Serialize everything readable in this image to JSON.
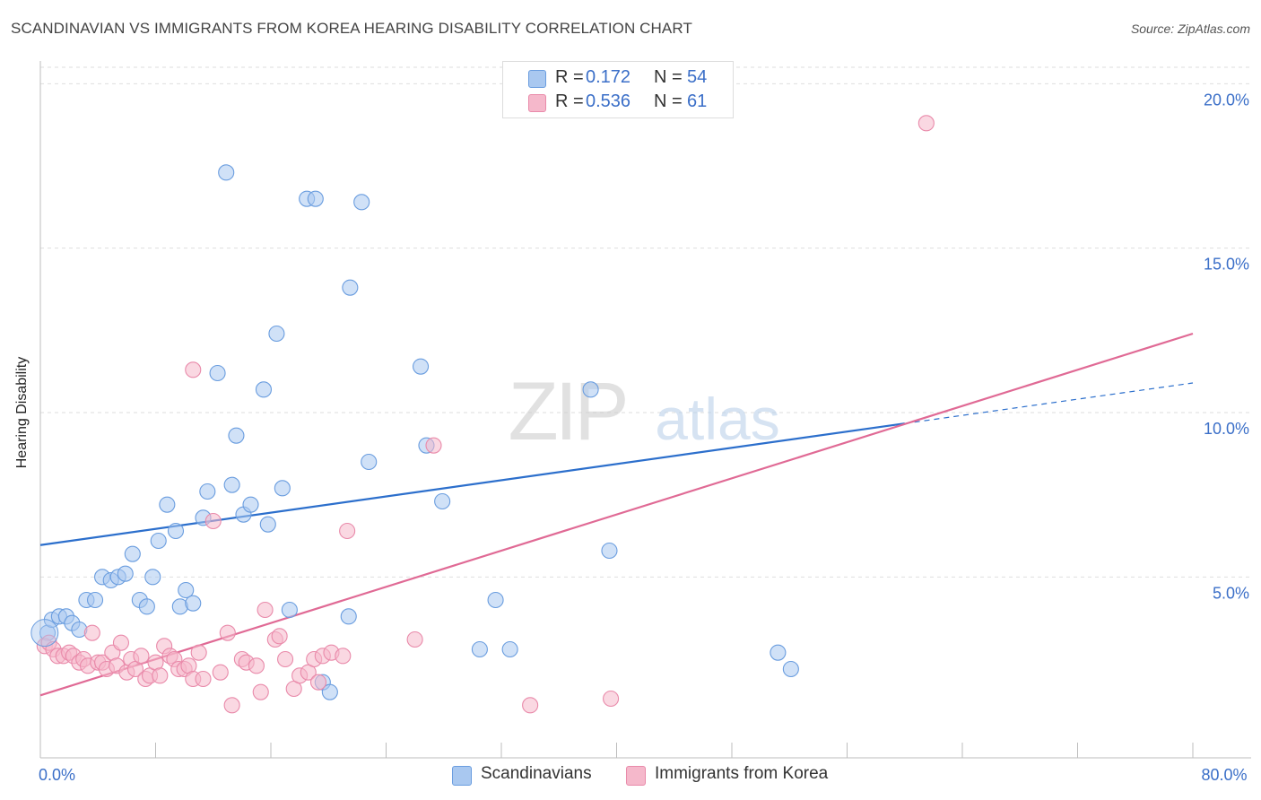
{
  "header": {
    "title": "SCANDINAVIAN VS IMMIGRANTS FROM KOREA HEARING DISABILITY CORRELATION CHART",
    "source": "Source: ZipAtlas.com"
  },
  "watermark": {
    "zip": "ZIP",
    "atlas": "atlas"
  },
  "stats": [
    {
      "r_label": "R =",
      "r_value": "0.172",
      "n_label": "N =",
      "n_value": "54",
      "color": "#a9c8f0"
    },
    {
      "r_label": "R =",
      "r_value": "0.536",
      "n_label": "N =",
      "n_value": "61",
      "color": "#f5b8cb"
    }
  ],
  "legend": [
    {
      "label": "Scandinavians",
      "color": "#a9c8f0"
    },
    {
      "label": "Immigrants from Korea",
      "color": "#f5b8cb"
    }
  ],
  "chart_data": {
    "type": "scatter",
    "ylabel": "Hearing Disability",
    "xlim": [
      0,
      80
    ],
    "ylim": [
      -0.5,
      20.5
    ],
    "x_tick_labels": [
      {
        "value": 0,
        "label": "0.0%"
      },
      {
        "value": 80,
        "label": "80.0%"
      }
    ],
    "y_tick_labels": [
      {
        "value": 5,
        "label": "5.0%"
      },
      {
        "value": 10,
        "label": "10.0%"
      },
      {
        "value": 15,
        "label": "15.0%"
      },
      {
        "value": 20,
        "label": "20.0%"
      }
    ],
    "grid": true,
    "series": [
      {
        "name": "Scandinavians",
        "color": "#a9c8f0",
        "stroke": "#6a9ddf",
        "line_color": "#2c6fcc",
        "trend": {
          "x0": 0,
          "y0": 5.97,
          "x1": 80,
          "y1": 10.9,
          "solid_until": 60
        },
        "points": [
          [
            0.5,
            3.3
          ],
          [
            0.8,
            3.7
          ],
          [
            1.3,
            3.8
          ],
          [
            1.8,
            3.8
          ],
          [
            2.2,
            3.6
          ],
          [
            2.7,
            3.4
          ],
          [
            3.2,
            4.3
          ],
          [
            3.8,
            4.3
          ],
          [
            4.3,
            5.0
          ],
          [
            4.9,
            4.9
          ],
          [
            5.4,
            5.0
          ],
          [
            5.9,
            5.1
          ],
          [
            6.4,
            5.7
          ],
          [
            6.9,
            4.3
          ],
          [
            7.4,
            4.1
          ],
          [
            7.8,
            5.0
          ],
          [
            8.2,
            6.1
          ],
          [
            8.8,
            7.2
          ],
          [
            9.4,
            6.4
          ],
          [
            9.7,
            4.1
          ],
          [
            10.1,
            4.6
          ],
          [
            10.6,
            4.2
          ],
          [
            11.3,
            6.8
          ],
          [
            11.6,
            7.6
          ],
          [
            12.3,
            11.2
          ],
          [
            12.9,
            17.3
          ],
          [
            13.3,
            7.8
          ],
          [
            13.6,
            9.3
          ],
          [
            14.1,
            6.9
          ],
          [
            14.6,
            7.2
          ],
          [
            15.5,
            10.7
          ],
          [
            15.8,
            6.6
          ],
          [
            16.4,
            12.4
          ],
          [
            16.8,
            7.7
          ],
          [
            17.3,
            4.0
          ],
          [
            18.5,
            16.5
          ],
          [
            19.1,
            16.5
          ],
          [
            19.6,
            1.8
          ],
          [
            20.1,
            1.5
          ],
          [
            21.5,
            13.8
          ],
          [
            21.4,
            3.8
          ],
          [
            22.3,
            16.4
          ],
          [
            22.8,
            8.5
          ],
          [
            26.4,
            11.4
          ],
          [
            26.8,
            9.0
          ],
          [
            27.9,
            7.3
          ],
          [
            30.5,
            2.8
          ],
          [
            31.6,
            4.3
          ],
          [
            32.6,
            2.8
          ],
          [
            33.6,
            20.0
          ],
          [
            38.2,
            10.7
          ],
          [
            39.5,
            5.8
          ],
          [
            51.2,
            2.7
          ],
          [
            52.1,
            2.2
          ]
        ]
      },
      {
        "name": "Immigrants from Korea",
        "color": "#f5b8cb",
        "stroke": "#e98aaa",
        "line_color": "#e06a95",
        "trend": {
          "x0": 0,
          "y0": 1.4,
          "x1": 80,
          "y1": 12.4
        },
        "points": [
          [
            0.3,
            2.9
          ],
          [
            0.6,
            3.0
          ],
          [
            0.9,
            2.8
          ],
          [
            1.2,
            2.6
          ],
          [
            1.6,
            2.6
          ],
          [
            2.0,
            2.7
          ],
          [
            2.3,
            2.6
          ],
          [
            2.7,
            2.4
          ],
          [
            3.0,
            2.5
          ],
          [
            3.3,
            2.3
          ],
          [
            3.6,
            3.3
          ],
          [
            4.0,
            2.4
          ],
          [
            4.3,
            2.4
          ],
          [
            4.6,
            2.2
          ],
          [
            5.0,
            2.7
          ],
          [
            5.3,
            2.3
          ],
          [
            5.6,
            3.0
          ],
          [
            6.0,
            2.1
          ],
          [
            6.3,
            2.5
          ],
          [
            6.6,
            2.2
          ],
          [
            7.0,
            2.6
          ],
          [
            7.3,
            1.9
          ],
          [
            7.6,
            2.0
          ],
          [
            8.0,
            2.4
          ],
          [
            8.3,
            2.0
          ],
          [
            8.6,
            2.9
          ],
          [
            9.0,
            2.6
          ],
          [
            9.3,
            2.5
          ],
          [
            9.6,
            2.2
          ],
          [
            10.0,
            2.2
          ],
          [
            10.3,
            2.3
          ],
          [
            10.6,
            1.9
          ],
          [
            10.6,
            11.3
          ],
          [
            11.0,
            2.7
          ],
          [
            11.3,
            1.9
          ],
          [
            12.0,
            6.7
          ],
          [
            12.5,
            2.1
          ],
          [
            13.0,
            3.3
          ],
          [
            13.3,
            1.1
          ],
          [
            14.0,
            2.5
          ],
          [
            14.3,
            2.4
          ],
          [
            15.0,
            2.3
          ],
          [
            15.3,
            1.5
          ],
          [
            15.6,
            4.0
          ],
          [
            16.3,
            3.1
          ],
          [
            16.6,
            3.2
          ],
          [
            17.0,
            2.5
          ],
          [
            17.6,
            1.6
          ],
          [
            18.0,
            2.0
          ],
          [
            18.6,
            2.1
          ],
          [
            19.0,
            2.5
          ],
          [
            19.3,
            1.8
          ],
          [
            19.6,
            2.6
          ],
          [
            20.2,
            2.7
          ],
          [
            21.0,
            2.6
          ],
          [
            21.3,
            6.4
          ],
          [
            26.0,
            3.1
          ],
          [
            27.3,
            9.0
          ],
          [
            34.0,
            1.1
          ],
          [
            39.6,
            1.3
          ],
          [
            61.5,
            18.8
          ]
        ]
      }
    ]
  }
}
